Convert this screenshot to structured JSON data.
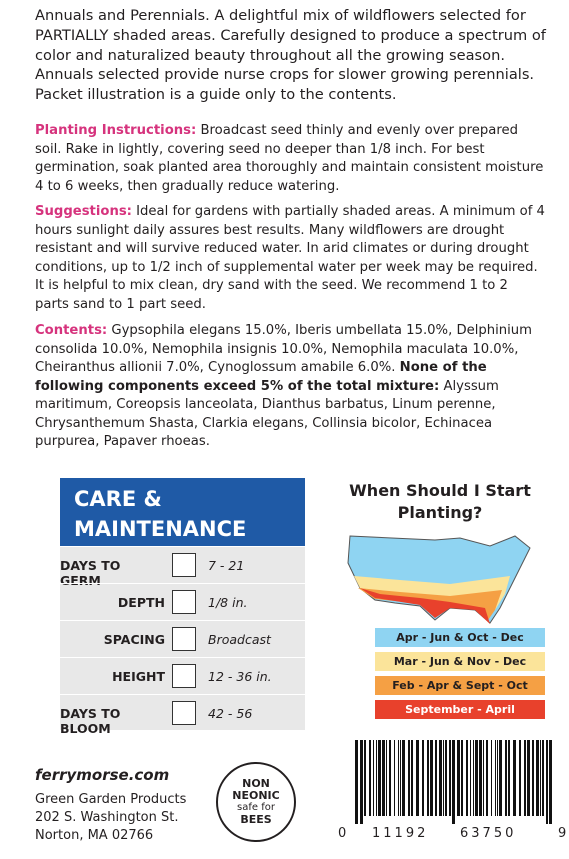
{
  "intro": "Annuals and Perennials. A delightful mix of wildflowers selected for PARTIALLY shaded areas. Carefully designed to produce a spectrum of color and naturalized beauty throughout all the growing season. Annuals selected provide nurse crops for slower growing perennials. Packet illustration is a guide only to the contents.",
  "planting": {
    "label": "Planting Instructions:",
    "text": "Broadcast seed thinly and evenly over prepared soil. Rake in lightly, covering seed no deeper than 1/8 inch. For best germination, soak planted area thoroughly and maintain consistent moisture 4 to 6 weeks, then gradually reduce watering."
  },
  "suggestions": {
    "label": "Suggestions:",
    "text": "Ideal for gardens with partially shaded areas. A minimum of 4 hours sunlight daily assures best results. Many wildflowers are drought resistant and will survive reduced water. In arid climates or during drought conditions, up to 1/2 inch of supplemental water per week may be required. It is helpful to mix clean, dry sand with the seed. We recommend 1 to 2 parts sand to 1 part seed."
  },
  "contents": {
    "label": "Contents:",
    "text": "Gypsophila elegans 15.0%, Iberis umbellata 15.0%, Delphinium consolida 10.0%, Nemophila insignis 10.0%, Nemophila maculata 10.0%, Cheiranthus allionii 7.0%, Cynoglossum amabile 6.0%.",
    "bold": "None of the following components exceed 5% of the total mixture:",
    "rest": "Alyssum maritimum, Coreopsis lanceolata, Dianthus barbatus, Linum perenne, Chrysanthemum Shasta, Clarkia elegans, Collinsia bicolor, Echinacea purpurea, Papaver rhoeas."
  },
  "care": {
    "title": "CARE & MAINTENANCE",
    "rows": [
      {
        "label": "DAYS TO GERM",
        "value": "7 - 21"
      },
      {
        "label": "DEPTH",
        "value": "1/8 in."
      },
      {
        "label": "SPACING",
        "value": "Broadcast"
      },
      {
        "label": "HEIGHT",
        "value": "12 - 36 in."
      },
      {
        "label": "DAYS TO BLOOM",
        "value": "42 - 56"
      }
    ]
  },
  "planting_time": {
    "title": "When Should I Start Planting?",
    "legend": [
      {
        "label": "Apr - Jun & Oct - Dec",
        "color": "#8fd4f2"
      },
      {
        "label": "Mar - Jun & Nov - Dec",
        "color": "#fbe49a"
      },
      {
        "label": "Feb - Apr & Sept - Oct",
        "color": "#f5a044"
      },
      {
        "label": "September - April",
        "color": "#e8412c"
      }
    ]
  },
  "footer": {
    "website": "ferrymorse.com",
    "company": "Green Garden Products",
    "address": "202 S. Washington St.",
    "city": "Norton, MA 02766"
  },
  "badge": [
    "NON",
    "NEONIC",
    "safe for",
    "BEES"
  ],
  "barcode": [
    "0",
    "11192",
    "63750",
    "9"
  ]
}
